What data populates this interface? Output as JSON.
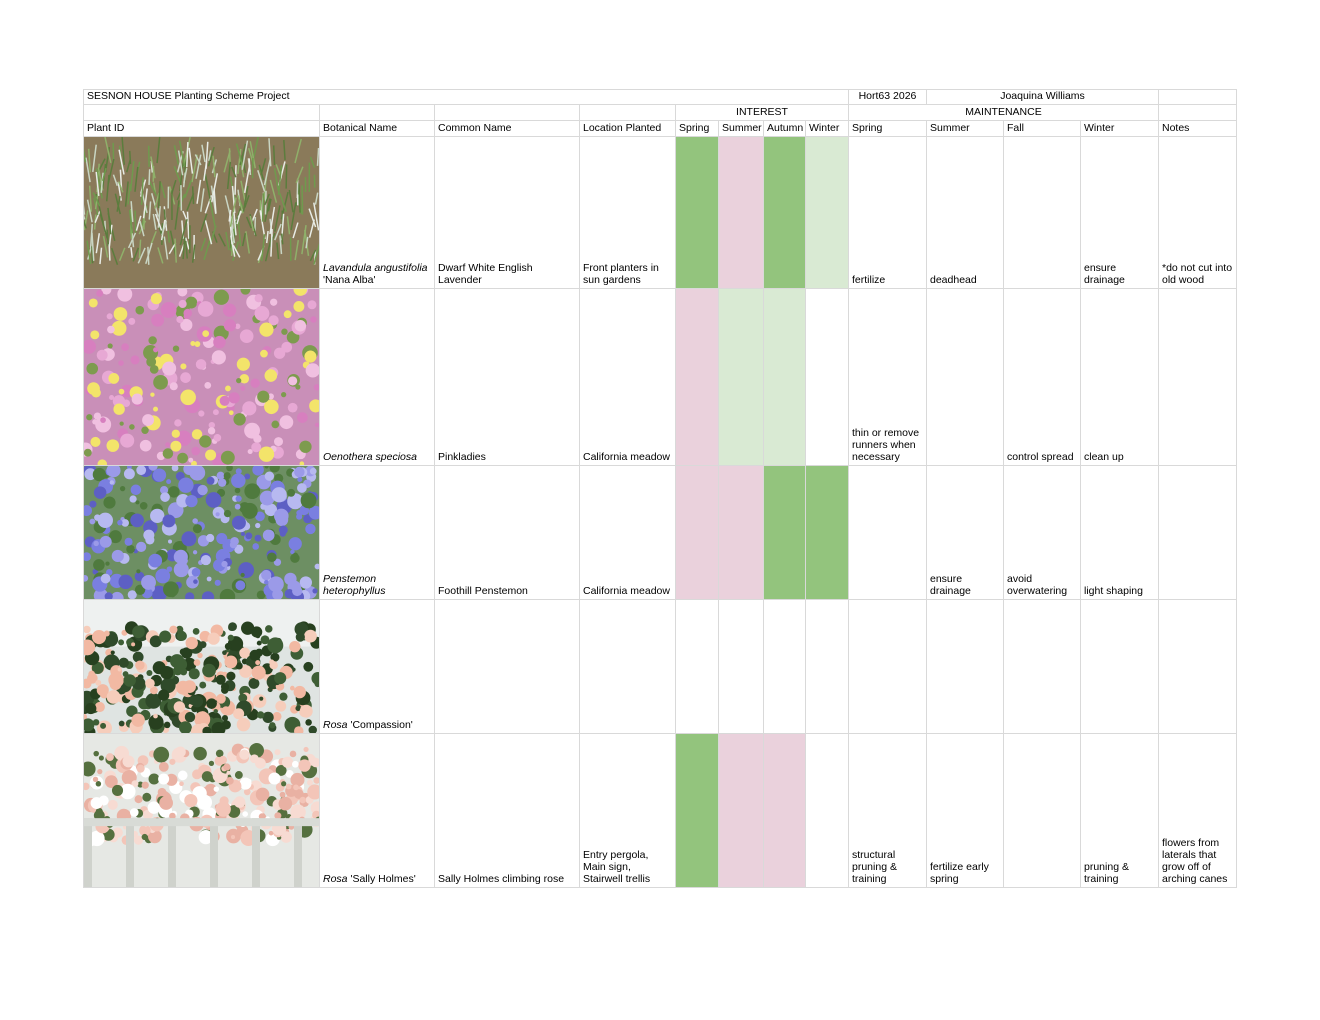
{
  "header": {
    "title": "SESNON HOUSE Planting Scheme Project",
    "course": "Hort63 2026",
    "author": "Joaquina Williams",
    "interest": "INTEREST",
    "maintenance": "MAINTENANCE"
  },
  "columns": [
    "Plant ID",
    "Botanical Name",
    "Common Name",
    "Location Planted",
    "Spring",
    "Summer",
    "Autumn",
    "Winter",
    "Spring",
    "Summer",
    "Fall",
    "Winter",
    "Notes"
  ],
  "rows": [
    {
      "genus": "Lavandula angustifolia",
      "cultivar": "'Nana Alba'",
      "common": "Dwarf White English Lavender",
      "location": "Front planters in sun gardens",
      "interest": [
        "#93c47d",
        "#ead1dc",
        "#93c47d",
        "#d9ead3"
      ],
      "maintenance": [
        "fertilize",
        "deadhead",
        null,
        "ensure drainage"
      ],
      "notes": "*do not cut into old wood"
    },
    {
      "genus": "Oenothera speciosa",
      "cultivar": null,
      "common": "Pinkladies",
      "location": "California meadow",
      "interest": [
        "#ead1dc",
        "#d9ead3",
        "#d9ead3",
        null
      ],
      "maintenance": [
        "thin or remove runners when necessary",
        null,
        "control spread",
        "clean up"
      ],
      "notes": null
    },
    {
      "genus": "Penstemon heterophyllus",
      "cultivar": null,
      "common": "Foothill Penstemon",
      "location": "California meadow",
      "interest": [
        "#ead1dc",
        "#ead1dc",
        "#93c47d",
        "#93c47d"
      ],
      "maintenance": [
        null,
        "ensure drainage",
        "avoid overwatering",
        "light shaping"
      ],
      "notes": null
    },
    {
      "genus": "Rosa",
      "cultivar": "'Compassion'",
      "common": null,
      "location": null,
      "interest": [
        null,
        null,
        null,
        null
      ],
      "maintenance": [
        null,
        null,
        null,
        null
      ],
      "notes": null
    },
    {
      "genus": "Rosa",
      "cultivar": "'Sally Holmes'",
      "common": "Sally Holmes climbing rose",
      "location": "Entry pergola, Main sign, Stairwell trellis",
      "interest": [
        "#93c47d",
        "#ead1dc",
        "#ead1dc",
        null
      ],
      "maintenance": [
        "structural pruning & training",
        "fertilize early spring",
        null,
        "pruning & training"
      ],
      "notes": "flowers from laterals that grow off of arching canes"
    }
  ]
}
